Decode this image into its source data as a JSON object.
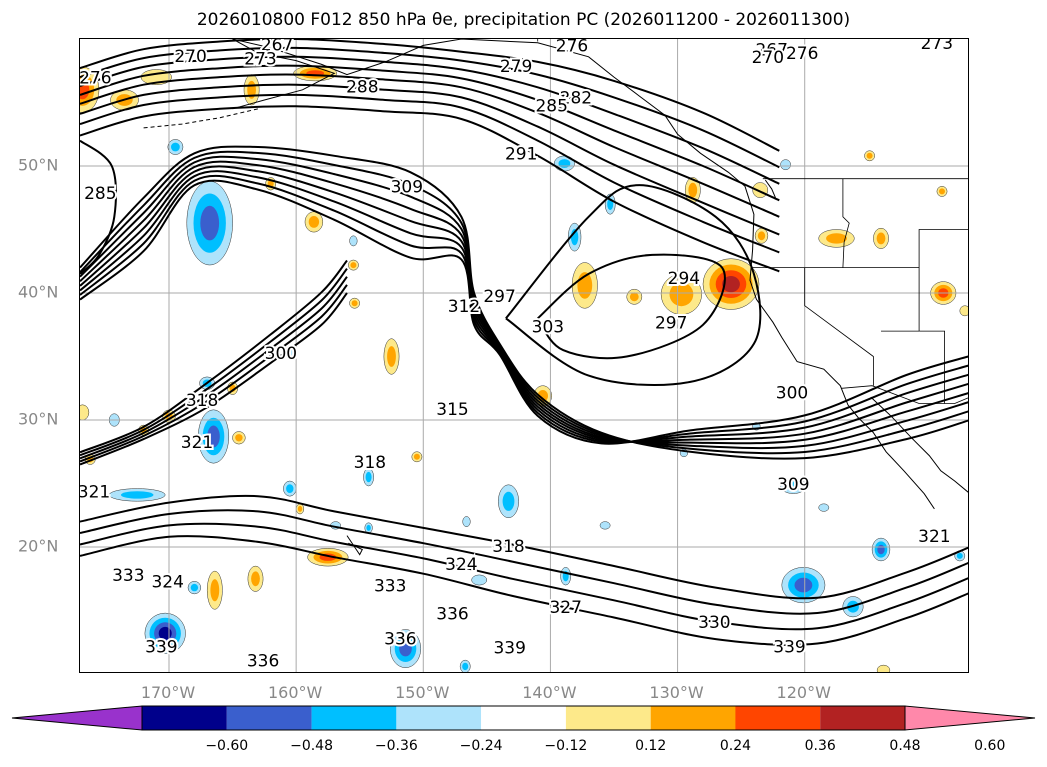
{
  "title": "2026010800 F012 850 hPa θe, precipitation PC (2026011200 - 2026011300)",
  "map": {
    "lon_range": [
      -177,
      -107
    ],
    "lat_range": [
      10,
      60
    ],
    "lat_ticks": [
      {
        "value": 50,
        "label": "50°N"
      },
      {
        "value": 40,
        "label": "40°N"
      },
      {
        "value": 30,
        "label": "30°N"
      },
      {
        "value": 20,
        "label": "20°N"
      }
    ],
    "lon_ticks": [
      {
        "value": -170,
        "label": "170°W"
      },
      {
        "value": -160,
        "label": "160°W"
      },
      {
        "value": -150,
        "label": "150°W"
      },
      {
        "value": -140,
        "label": "140°W"
      },
      {
        "value": -130,
        "label": "130°W"
      },
      {
        "value": -120,
        "label": "120°W"
      }
    ],
    "grid": true,
    "colors": {
      "contour": "#000000",
      "grid": "#aaaaaa",
      "coast": "#000000",
      "tick_label": "#888888"
    },
    "contour_labels": [
      {
        "text": "267",
        "lon": -161.5,
        "lat": 59.5
      },
      {
        "text": "270",
        "lon": -168.3,
        "lat": 58.6
      },
      {
        "text": "273",
        "lon": -162.8,
        "lat": 58.4
      },
      {
        "text": "276",
        "lon": -175.8,
        "lat": 56.9
      },
      {
        "text": "288",
        "lon": -154.8,
        "lat": 56.2
      },
      {
        "text": "285",
        "lon": -175.4,
        "lat": 47.8
      },
      {
        "text": "309",
        "lon": -151.3,
        "lat": 48.3
      },
      {
        "text": "279",
        "lon": -142.7,
        "lat": 57.8
      },
      {
        "text": "282",
        "lon": -138,
        "lat": 55.3
      },
      {
        "text": "285",
        "lon": -139.9,
        "lat": 54.7
      },
      {
        "text": "291",
        "lon": -142.3,
        "lat": 50.9
      },
      {
        "text": "276",
        "lon": -138.3,
        "lat": 59.4
      },
      {
        "text": "267",
        "lon": -122.6,
        "lat": 59.1
      },
      {
        "text": "270",
        "lon": -122.9,
        "lat": 58.5
      },
      {
        "text": "276",
        "lon": -120.2,
        "lat": 58.8
      },
      {
        "text": "273",
        "lon": -109.6,
        "lat": 59.6
      },
      {
        "text": "297",
        "lon": -144,
        "lat": 39.7
      },
      {
        "text": "312",
        "lon": -146.8,
        "lat": 38.9
      },
      {
        "text": "303",
        "lon": -140.2,
        "lat": 37.3
      },
      {
        "text": "294",
        "lon": -129.5,
        "lat": 41.1
      },
      {
        "text": "297",
        "lon": -130.5,
        "lat": 37.6
      },
      {
        "text": "300",
        "lon": -161.2,
        "lat": 35.2
      },
      {
        "text": "300",
        "lon": -121,
        "lat": 32.1
      },
      {
        "text": "315",
        "lon": -147.7,
        "lat": 30.8
      },
      {
        "text": "318",
        "lon": -167.4,
        "lat": 31.5
      },
      {
        "text": "321",
        "lon": -167.8,
        "lat": 28.2
      },
      {
        "text": "318",
        "lon": -154.2,
        "lat": 26.6
      },
      {
        "text": "321",
        "lon": -175.9,
        "lat": 24.3
      },
      {
        "text": "309",
        "lon": -120.9,
        "lat": 24.9
      },
      {
        "text": "321",
        "lon": -109.8,
        "lat": 20.8
      },
      {
        "text": "318",
        "lon": -143.3,
        "lat": 20.0
      },
      {
        "text": "324",
        "lon": -147,
        "lat": 18.6
      },
      {
        "text": "327",
        "lon": -138.8,
        "lat": 15.2
      },
      {
        "text": "330",
        "lon": -127.1,
        "lat": 14
      },
      {
        "text": "333",
        "lon": -173.2,
        "lat": 17.7
      },
      {
        "text": "324",
        "lon": -170.1,
        "lat": 17.2
      },
      {
        "text": "333",
        "lon": -152.6,
        "lat": 16.9
      },
      {
        "text": "336",
        "lon": -151.8,
        "lat": 12.7
      },
      {
        "text": "336",
        "lon": -147.7,
        "lat": 14.7
      },
      {
        "text": "339",
        "lon": -170.6,
        "lat": 12.1
      },
      {
        "text": "336",
        "lon": -162.6,
        "lat": 11.0
      },
      {
        "text": "339",
        "lon": -143.2,
        "lat": 12.0
      },
      {
        "text": "339",
        "lon": -121.2,
        "lat": 12.1
      }
    ],
    "blobs": [
      {
        "lon": -176.8,
        "lat": 56,
        "rx": 1.3,
        "ry": 1.8,
        "colors": [
          "#fde98a",
          "#ffa500",
          "#ff4500"
        ]
      },
      {
        "lon": -173.5,
        "lat": 55.2,
        "rx": 1.1,
        "ry": 0.8,
        "colors": [
          "#fde98a",
          "#ffa500"
        ]
      },
      {
        "lon": -171,
        "lat": 57,
        "rx": 1.2,
        "ry": 0.6,
        "colors": [
          "#fde98a"
        ]
      },
      {
        "lon": -158.5,
        "lat": 57.3,
        "rx": 1.7,
        "ry": 0.6,
        "colors": [
          "#fde98a",
          "#ffa500",
          "#ff4500"
        ]
      },
      {
        "lon": -163.5,
        "lat": 56,
        "rx": 0.6,
        "ry": 1.2,
        "colors": [
          "#fde98a",
          "#ffa500"
        ]
      },
      {
        "lon": -169.5,
        "lat": 51.5,
        "rx": 0.6,
        "ry": 0.6,
        "colors": [
          "#aee3fb",
          "#00bfff"
        ]
      },
      {
        "lon": -166.8,
        "lat": 45.5,
        "rx": 1.8,
        "ry": 3.3,
        "colors": [
          "#aee3fb",
          "#00bfff",
          "#3a5fcd"
        ]
      },
      {
        "lon": -162,
        "lat": 48.6,
        "rx": 0.4,
        "ry": 0.5,
        "colors": [
          "#fde98a",
          "#ffa500"
        ]
      },
      {
        "lon": -158.6,
        "lat": 45.6,
        "rx": 0.7,
        "ry": 0.8,
        "colors": [
          "#fde98a",
          "#ffa500"
        ]
      },
      {
        "lon": -155.5,
        "lat": 44.1,
        "rx": 0.3,
        "ry": 0.4,
        "colors": [
          "#aee3fb"
        ]
      },
      {
        "lon": -155.5,
        "lat": 42.2,
        "rx": 0.4,
        "ry": 0.4,
        "colors": [
          "#fde98a",
          "#ffa500"
        ]
      },
      {
        "lon": -155.4,
        "lat": 39.2,
        "rx": 0.4,
        "ry": 0.4,
        "colors": [
          "#fde98a",
          "#ffa500"
        ]
      },
      {
        "lon": -160.4,
        "lat": 35.3,
        "rx": 0.3,
        "ry": 0.3,
        "colors": [
          "#aee3fb"
        ]
      },
      {
        "lon": -167,
        "lat": 32.9,
        "rx": 0.6,
        "ry": 0.5,
        "colors": [
          "#aee3fb",
          "#00bfff"
        ]
      },
      {
        "lon": -165,
        "lat": 32.5,
        "rx": 0.4,
        "ry": 0.5,
        "colors": [
          "#fde98a",
          "#ffa500"
        ]
      },
      {
        "lon": -166.5,
        "lat": 28.7,
        "rx": 1.2,
        "ry": 2.1,
        "colors": [
          "#aee3fb",
          "#00bfff",
          "#3a5fcd"
        ]
      },
      {
        "lon": -170,
        "lat": 30.3,
        "rx": 0.5,
        "ry": 0.5,
        "colors": [
          "#fde98a",
          "#ffa500"
        ]
      },
      {
        "lon": -172,
        "lat": 29.2,
        "rx": 0.4,
        "ry": 0.4,
        "colors": [
          "#fde98a",
          "#ffa500"
        ]
      },
      {
        "lon": -174.3,
        "lat": 30,
        "rx": 0.4,
        "ry": 0.5,
        "colors": [
          "#aee3fb"
        ]
      },
      {
        "lon": -176.8,
        "lat": 30.6,
        "rx": 0.5,
        "ry": 0.6,
        "colors": [
          "#fde98a"
        ]
      },
      {
        "lon": -176.2,
        "lat": 26.9,
        "rx": 0.4,
        "ry": 0.4,
        "colors": [
          "#fde98a",
          "#ffa500"
        ]
      },
      {
        "lon": -172.5,
        "lat": 24.1,
        "rx": 2.2,
        "ry": 0.5,
        "colors": [
          "#aee3fb",
          "#00bfff"
        ]
      },
      {
        "lon": -164.5,
        "lat": 28.6,
        "rx": 0.5,
        "ry": 0.5,
        "colors": [
          "#fde98a",
          "#ffa500"
        ]
      },
      {
        "lon": -152.5,
        "lat": 35.0,
        "rx": 0.6,
        "ry": 1.4,
        "colors": [
          "#fde98a",
          "#ffa500"
        ]
      },
      {
        "lon": -150.5,
        "lat": 27.1,
        "rx": 0.4,
        "ry": 0.4,
        "colors": [
          "#fde98a",
          "#ffa500"
        ]
      },
      {
        "lon": -154.3,
        "lat": 25.5,
        "rx": 0.4,
        "ry": 0.7,
        "colors": [
          "#aee3fb",
          "#00bfff"
        ]
      },
      {
        "lon": -160.5,
        "lat": 24.6,
        "rx": 0.5,
        "ry": 0.6,
        "colors": [
          "#aee3fb",
          "#00bfff"
        ]
      },
      {
        "lon": -159.7,
        "lat": 23.0,
        "rx": 0.3,
        "ry": 0.4,
        "colors": [
          "#fde98a",
          "#ffa500"
        ]
      },
      {
        "lon": -156.9,
        "lat": 21.7,
        "rx": 0.4,
        "ry": 0.3,
        "colors": [
          "#aee3fb"
        ]
      },
      {
        "lon": -154.3,
        "lat": 21.5,
        "rx": 0.3,
        "ry": 0.4,
        "colors": [
          "#aee3fb",
          "#00bfff"
        ]
      },
      {
        "lon": -157.5,
        "lat": 19.2,
        "rx": 1.6,
        "ry": 0.7,
        "colors": [
          "#fde98a",
          "#ffa500",
          "#ff4500"
        ]
      },
      {
        "lon": -163.2,
        "lat": 17.5,
        "rx": 0.6,
        "ry": 1.0,
        "colors": [
          "#fde98a",
          "#ffa500"
        ]
      },
      {
        "lon": -166.4,
        "lat": 16.6,
        "rx": 0.6,
        "ry": 1.5,
        "colors": [
          "#fde98a",
          "#ffa500"
        ]
      },
      {
        "lon": -170.3,
        "lat": 13.2,
        "rx": 1.6,
        "ry": 1.6,
        "colors": [
          "#aee3fb",
          "#00bfff",
          "#3a5fcd",
          "#00008b"
        ]
      },
      {
        "lon": -168,
        "lat": 16.8,
        "rx": 0.5,
        "ry": 0.5,
        "colors": [
          "#aee3fb",
          "#00bfff"
        ]
      },
      {
        "lon": -151.4,
        "lat": 12.0,
        "rx": 1.2,
        "ry": 1.5,
        "colors": [
          "#aee3fb",
          "#00bfff",
          "#3a5fcd"
        ]
      },
      {
        "lon": -146.7,
        "lat": 10.6,
        "rx": 0.4,
        "ry": 0.5,
        "colors": [
          "#aee3fb",
          "#00bfff"
        ]
      },
      {
        "lon": -145.6,
        "lat": 17.4,
        "rx": 0.6,
        "ry": 0.4,
        "colors": [
          "#aee3fb"
        ]
      },
      {
        "lon": -143.3,
        "lat": 23.6,
        "rx": 0.8,
        "ry": 1.3,
        "colors": [
          "#aee3fb",
          "#00bfff"
        ]
      },
      {
        "lon": -146.6,
        "lat": 22.0,
        "rx": 0.3,
        "ry": 0.4,
        "colors": [
          "#aee3fb"
        ]
      },
      {
        "lon": -140.6,
        "lat": 31.9,
        "rx": 0.7,
        "ry": 0.8,
        "colors": [
          "#fde98a",
          "#ffa500"
        ]
      },
      {
        "lon": -138.8,
        "lat": 17.7,
        "rx": 0.4,
        "ry": 0.7,
        "colors": [
          "#aee3fb",
          "#00bfff"
        ]
      },
      {
        "lon": -135.7,
        "lat": 21.7,
        "rx": 0.4,
        "ry": 0.3,
        "colors": [
          "#aee3fb"
        ]
      },
      {
        "lon": -137.3,
        "lat": 40.6,
        "rx": 1.0,
        "ry": 1.8,
        "colors": [
          "#fde98a",
          "#ffa500"
        ]
      },
      {
        "lon": -138.9,
        "lat": 50.2,
        "rx": 0.8,
        "ry": 0.6,
        "colors": [
          "#aee3fb",
          "#00bfff"
        ]
      },
      {
        "lon": -135.3,
        "lat": 47.0,
        "rx": 0.4,
        "ry": 0.8,
        "colors": [
          "#aee3fb",
          "#00bfff"
        ]
      },
      {
        "lon": -138.1,
        "lat": 44.4,
        "rx": 0.5,
        "ry": 1.1,
        "colors": [
          "#aee3fb",
          "#00bfff"
        ]
      },
      {
        "lon": -133.4,
        "lat": 39.7,
        "rx": 0.6,
        "ry": 0.6,
        "colors": [
          "#fde98a",
          "#ffa500"
        ]
      },
      {
        "lon": -129.7,
        "lat": 39.9,
        "rx": 1.6,
        "ry": 1.6,
        "colors": [
          "#fde98a",
          "#ffa500"
        ]
      },
      {
        "lon": -125.8,
        "lat": 40.7,
        "rx": 2.2,
        "ry": 2.0,
        "colors": [
          "#fde98a",
          "#ffa500",
          "#ff4500",
          "#b22222"
        ]
      },
      {
        "lon": -128.8,
        "lat": 48.1,
        "rx": 0.6,
        "ry": 1.0,
        "colors": [
          "#fde98a",
          "#ffa500"
        ]
      },
      {
        "lon": -121.5,
        "lat": 50.1,
        "rx": 0.4,
        "ry": 0.4,
        "colors": [
          "#aee3fb"
        ]
      },
      {
        "lon": -114.9,
        "lat": 50.8,
        "rx": 0.4,
        "ry": 0.4,
        "colors": [
          "#fde98a",
          "#ffa500"
        ]
      },
      {
        "lon": -117.5,
        "lat": 44.3,
        "rx": 1.4,
        "ry": 0.7,
        "colors": [
          "#fde98a",
          "#ffa500"
        ]
      },
      {
        "lon": -114,
        "lat": 44.3,
        "rx": 0.6,
        "ry": 0.8,
        "colors": [
          "#fde98a",
          "#ffa500"
        ]
      },
      {
        "lon": -109.1,
        "lat": 40.0,
        "rx": 1.0,
        "ry": 0.9,
        "colors": [
          "#fde98a",
          "#ffa500",
          "#ff4500"
        ]
      },
      {
        "lon": -109.2,
        "lat": 48.0,
        "rx": 0.4,
        "ry": 0.4,
        "colors": [
          "#fde98a",
          "#ffa500"
        ]
      },
      {
        "lon": -107.4,
        "lat": 38.6,
        "rx": 0.4,
        "ry": 0.4,
        "colors": [
          "#fde98a"
        ]
      },
      {
        "lon": -123.5,
        "lat": 48.1,
        "rx": 0.6,
        "ry": 0.6,
        "colors": [
          "#fde98a"
        ]
      },
      {
        "lon": -123.4,
        "lat": 44.5,
        "rx": 0.5,
        "ry": 0.6,
        "colors": [
          "#fde98a",
          "#ffa500"
        ]
      },
      {
        "lon": -129.5,
        "lat": 27.4,
        "rx": 0.3,
        "ry": 0.3,
        "colors": [
          "#aee3fb"
        ]
      },
      {
        "lon": -123.8,
        "lat": 29.5,
        "rx": 0.3,
        "ry": 0.3,
        "colors": [
          "#aee3fb"
        ]
      },
      {
        "lon": -120.9,
        "lat": 24.8,
        "rx": 1.0,
        "ry": 0.6,
        "colors": [
          "#aee3fb",
          "#00bfff"
        ]
      },
      {
        "lon": -120.1,
        "lat": 17.0,
        "rx": 1.7,
        "ry": 1.4,
        "colors": [
          "#aee3fb",
          "#00bfff",
          "#3a5fcd"
        ]
      },
      {
        "lon": -116.2,
        "lat": 15.3,
        "rx": 0.8,
        "ry": 0.8,
        "colors": [
          "#aee3fb",
          "#00bfff"
        ]
      },
      {
        "lon": -114,
        "lat": 19.8,
        "rx": 0.7,
        "ry": 0.9,
        "colors": [
          "#aee3fb",
          "#00bfff",
          "#3a5fcd"
        ]
      },
      {
        "lon": -107.8,
        "lat": 19.3,
        "rx": 0.4,
        "ry": 0.4,
        "colors": [
          "#aee3fb",
          "#00bfff"
        ]
      },
      {
        "lon": -118.5,
        "lat": 23.1,
        "rx": 0.4,
        "ry": 0.3,
        "colors": [
          "#aee3fb"
        ]
      },
      {
        "lon": -113.8,
        "lat": 10.3,
        "rx": 0.5,
        "ry": 0.4,
        "colors": [
          "#fde98a"
        ]
      }
    ]
  },
  "colorbar": {
    "bins": [
      {
        "color": "#9932cc"
      },
      {
        "color": "#00008b"
      },
      {
        "color": "#3a5fcd"
      },
      {
        "color": "#00bfff"
      },
      {
        "color": "#aee3fb"
      },
      {
        "color": "#ffffff"
      },
      {
        "color": "#fde98a"
      },
      {
        "color": "#ffa500"
      },
      {
        "color": "#ff4500"
      },
      {
        "color": "#b22222"
      },
      {
        "color": "#ff88aa"
      }
    ],
    "ticks": [
      "−0.60",
      "−0.48",
      "−0.36",
      "−0.24",
      "−0.12",
      "0.12",
      "0.24",
      "0.36",
      "0.48",
      "0.60"
    ]
  }
}
